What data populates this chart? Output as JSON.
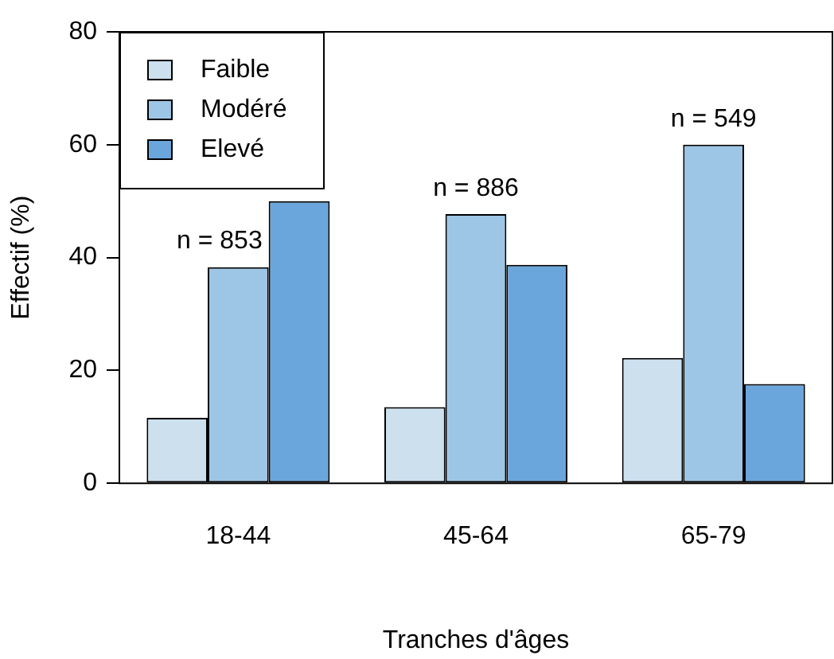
{
  "chart_data": {
    "type": "bar",
    "xlabel": "Tranches d'âges",
    "ylabel": "Effectif (%)",
    "categories": [
      "18-44",
      "45-64",
      "65-79"
    ],
    "series": [
      {
        "name": "Faible",
        "color": "#cce0ee",
        "values": [
          11.6,
          13.5,
          22.2
        ]
      },
      {
        "name": "Modéré",
        "color": "#9dc6e6",
        "values": [
          38.3,
          47.7,
          60.0
        ]
      },
      {
        "name": "Elevé",
        "color": "#6aa6dc",
        "values": [
          50.0,
          38.7,
          17.6
        ]
      }
    ],
    "ylim": [
      0,
      80
    ],
    "yticks": [
      0,
      20,
      40,
      60,
      80
    ],
    "grid": false,
    "legend": "top left",
    "annotations": [
      "n = 853",
      "n = 886",
      "n = 549"
    ]
  }
}
